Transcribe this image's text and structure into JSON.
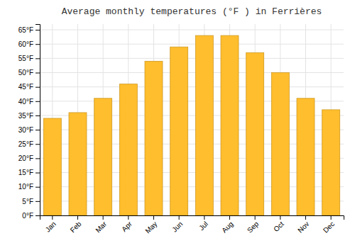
{
  "chart_data": {
    "type": "bar",
    "title": "Average monthly temperatures (°F ) in Ferrières",
    "categories": [
      "Jan",
      "Feb",
      "Mar",
      "Apr",
      "May",
      "Jun",
      "Jul",
      "Aug",
      "Sep",
      "Oct",
      "Nov",
      "Dec"
    ],
    "values": [
      34,
      36,
      41,
      46,
      54,
      59,
      63,
      63,
      57,
      50,
      41,
      37
    ],
    "color": "#FFBE2D",
    "ylim": [
      0,
      67
    ],
    "yticks": [
      {
        "value": 0,
        "label": "0°F"
      },
      {
        "value": 5,
        "label": "5°F"
      },
      {
        "value": 10,
        "label": "10°F"
      },
      {
        "value": 15,
        "label": "15°F"
      },
      {
        "value": 20,
        "label": "20°F"
      },
      {
        "value": 25,
        "label": "25°F"
      },
      {
        "value": 30,
        "label": "30°F"
      },
      {
        "value": 35,
        "label": "35°F"
      },
      {
        "value": 40,
        "label": "40°F"
      },
      {
        "value": 45,
        "label": "45°F"
      },
      {
        "value": 50,
        "label": "50°F"
      },
      {
        "value": 55,
        "label": "55°F"
      },
      {
        "value": 60,
        "label": "60°F"
      },
      {
        "value": 65,
        "label": "65°F"
      }
    ],
    "grid": true
  }
}
